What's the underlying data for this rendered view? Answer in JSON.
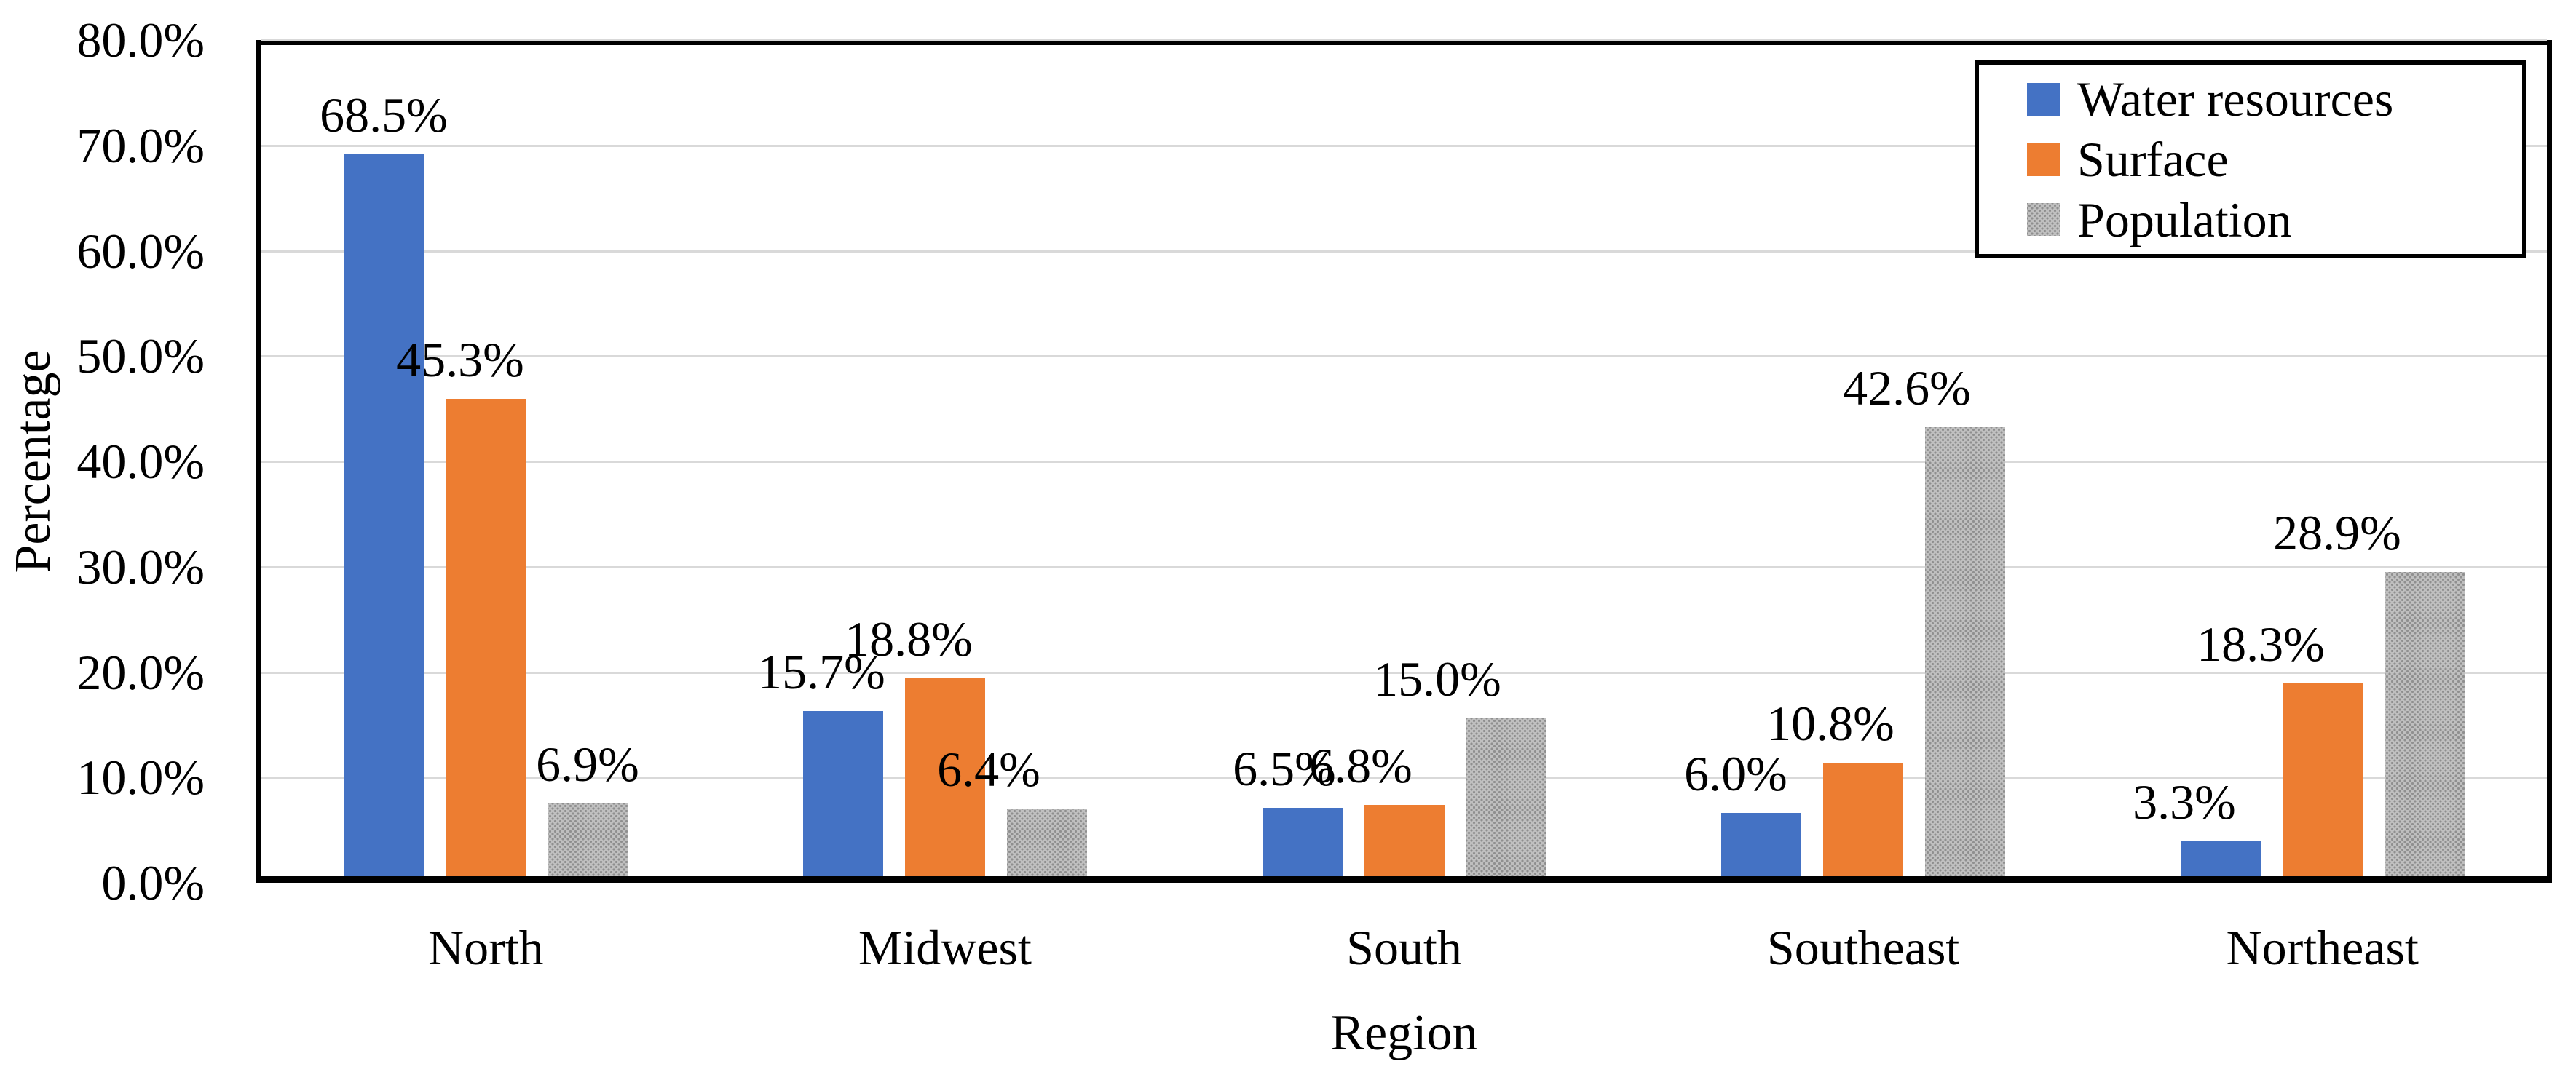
{
  "chart_data": {
    "type": "bar",
    "title": "",
    "categories": [
      "North",
      "Midwest",
      "South",
      "Southeast",
      "Northeast"
    ],
    "series": [
      {
        "name": "Water resources",
        "color": "#4472C4",
        "pattern": "solid",
        "values": [
          68.5,
          15.7,
          6.5,
          6.0,
          3.3
        ],
        "labels": [
          "68.5%",
          "15.7%",
          "6.5%",
          "6.0%",
          "3.3%"
        ]
      },
      {
        "name": "Surface",
        "color": "#ED7D31",
        "pattern": "solid",
        "values": [
          45.3,
          18.8,
          6.8,
          10.8,
          18.3
        ],
        "labels": [
          "45.3%",
          "18.8%",
          "6.8%",
          "10.8%",
          "18.3%"
        ]
      },
      {
        "name": "Population",
        "color": "#BFBFBF",
        "pattern": "dots",
        "values": [
          6.9,
          6.4,
          15.0,
          42.6,
          28.9
        ],
        "labels": [
          "6.9%",
          "6.4%",
          "15.0%",
          "42.6%",
          "28.9%"
        ]
      }
    ],
    "xlabel": "Region",
    "ylabel": "Percentage",
    "ylim": [
      0,
      80
    ],
    "yticks": [
      "0.0%",
      "10.0%",
      "20.0%",
      "30.0%",
      "40.0%",
      "50.0%",
      "60.0%",
      "70.0%",
      "80.0%"
    ],
    "ytick_step": 10,
    "grid": true,
    "legend_position": "top-right",
    "colors": {
      "grid": "#D9D9D9",
      "axis": "#000000",
      "text": "#000000",
      "background": "#FFFFFF",
      "pattern_base": "#BFBFBF",
      "pattern_dot": "#8F8F8F"
    }
  }
}
